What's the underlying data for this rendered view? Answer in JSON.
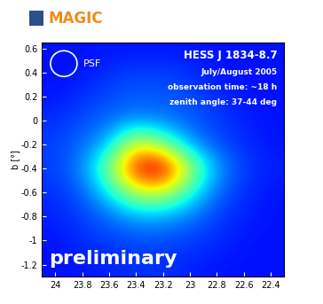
{
  "chart_data": {
    "type": "heatmap",
    "header": "MAGIC",
    "title": "HESS J 1834-8.7",
    "annotations": [
      "July/August 2005",
      "observation time: ~18 h",
      "zenith angle: 37-44 deg"
    ],
    "psf_label": "PSF",
    "watermark": "preliminary",
    "y_label": "b [°]",
    "x": [
      24,
      23.8,
      23.6,
      23.4,
      23.2,
      23,
      22.8,
      22.6,
      22.4
    ],
    "y": [
      -1.2,
      -1,
      -0.8,
      -0.6,
      -0.4,
      -0.2,
      0,
      0.2,
      0.4,
      0.6
    ],
    "cells": [
      [
        0,
        0,
        0.1,
        0.2,
        0.2,
        0.1,
        0,
        0,
        0
      ],
      [
        0,
        0.2,
        0.3,
        0.4,
        0.4,
        0.3,
        0.2,
        0,
        0
      ],
      [
        0.1,
        0.3,
        0.6,
        1.0,
        1.0,
        0.7,
        0.3,
        0.1,
        0
      ],
      [
        0.2,
        0.5,
        1.5,
        3.0,
        3.2,
        1.8,
        0.6,
        0.2,
        0
      ],
      [
        0.3,
        0.8,
        2.5,
        5.5,
        6.0,
        3.0,
        1.0,
        0.3,
        0.1
      ],
      [
        0.3,
        0.6,
        1.2,
        3.5,
        2.5,
        1.0,
        0.4,
        0.2,
        0
      ],
      [
        0.2,
        0.4,
        0.6,
        0.8,
        0.7,
        0.5,
        0.3,
        0.1,
        0
      ],
      [
        0,
        0.2,
        0.4,
        0.5,
        0.5,
        0.4,
        0.2,
        0,
        0
      ],
      [
        0,
        0,
        0.2,
        0.3,
        0.3,
        0.2,
        0,
        0,
        0
      ],
      [
        0,
        0,
        0,
        0,
        0,
        0,
        0,
        0,
        0
      ]
    ],
    "zlim": [
      -1,
      6
    ],
    "xlim": [
      24.1,
      22.3
    ],
    "xticks": [
      24,
      23.8,
      23.6,
      23.4,
      23.2,
      23,
      22.8,
      22.6,
      22.4
    ],
    "ylim": [
      -1.3,
      0.65
    ],
    "yticks": [
      -1.2,
      -1,
      -0.8,
      -0.6,
      -0.4,
      -0.2,
      0,
      0.2,
      0.4,
      0.6
    ]
  }
}
